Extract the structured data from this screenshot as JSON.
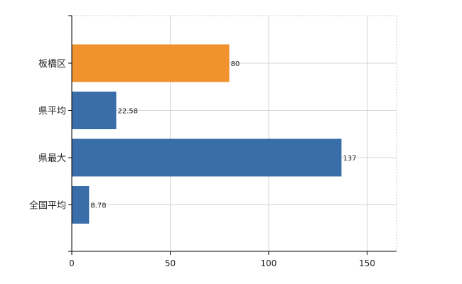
{
  "chart_data": {
    "type": "bar",
    "orientation": "horizontal",
    "title": "",
    "xlabel": "",
    "ylabel": "",
    "categories": [
      "板橋区",
      "県平均",
      "県最大",
      "全国平均"
    ],
    "values": [
      80,
      22.58,
      137,
      8.78
    ],
    "value_labels": [
      "80",
      "22.58",
      "137",
      "8.78"
    ],
    "bar_colors": [
      "#f0922e",
      "#3a6ea8",
      "#3a6ea8",
      "#3a6ea8"
    ],
    "xlim": [
      0,
      165
    ],
    "xticks": [
      0,
      50,
      100,
      150
    ],
    "xtick_labels": [
      "0",
      "50",
      "100",
      "150"
    ],
    "grid": true,
    "grid_style": "dotted",
    "legend": "none"
  }
}
